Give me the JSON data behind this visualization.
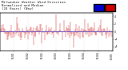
{
  "background_color": "#ffffff",
  "plot_bg_color": "#ffffff",
  "bar_color": "#cc0000",
  "median_color": "#0000cc",
  "n_points": 200,
  "seed": 42,
  "ylim": [
    -5,
    5
  ],
  "yticks": [
    -4,
    -2,
    0,
    2,
    4
  ],
  "grid_color": "#cccccc",
  "title_fontsize": 3.0,
  "tick_fontsize": 2.2,
  "fig_width": 1.6,
  "fig_height": 0.87,
  "dpi": 100
}
